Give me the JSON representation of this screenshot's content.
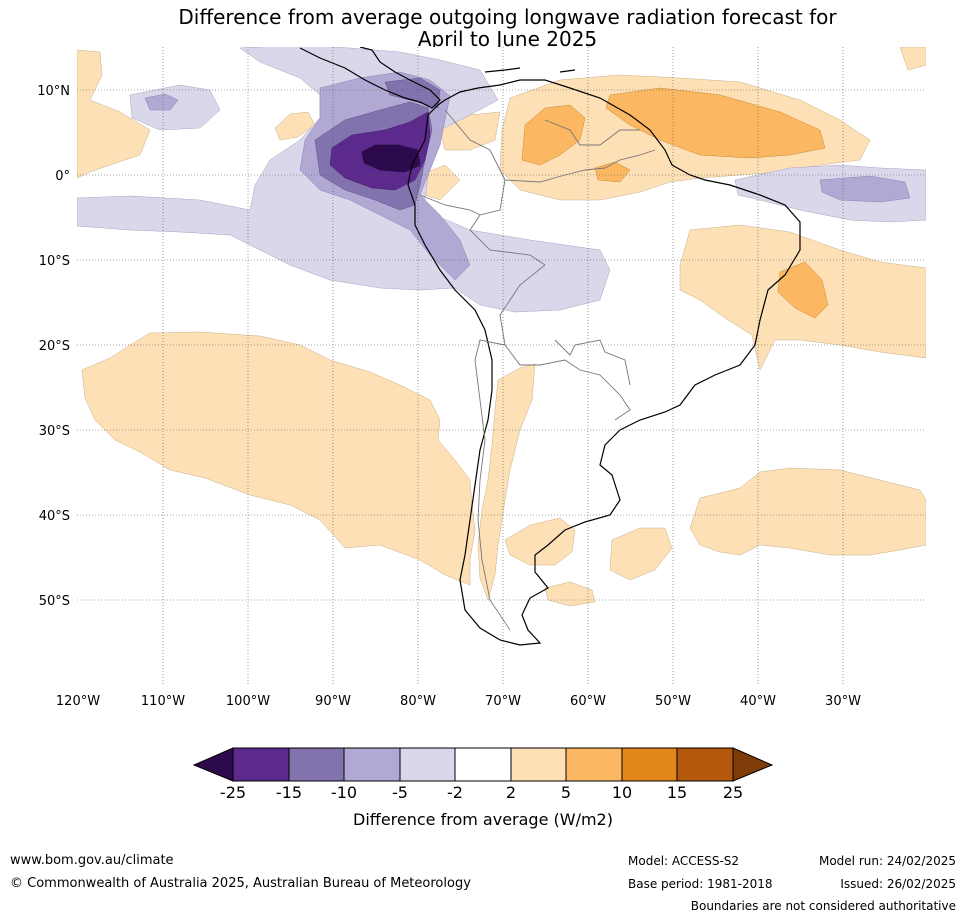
{
  "title": {
    "line1": "Difference from average outgoing longwave radiation forecast for",
    "line2": "April to June 2025"
  },
  "map": {
    "lon_labels": [
      "120°W",
      "110°W",
      "100°W",
      "90°W",
      "80°W",
      "70°W",
      "60°W",
      "50°W",
      "40°W",
      "30°W"
    ],
    "lat_labels": [
      "10°N",
      "0°",
      "10°S",
      "20°S",
      "30°S",
      "40°S",
      "50°S"
    ],
    "colors": {
      "neg25": "#2d0a4e",
      "neg15": "#5c2a8c",
      "neg10": "#8273ae",
      "neg5": "#b1a9d3",
      "neg2": "#d9d8eb",
      "neutral": "#ffffff",
      "pos2": "#fde0b5",
      "pos5": "#fbb762",
      "pos10": "#e0861a",
      "pos15": "#b3580c",
      "pos25": "#7f3b08"
    }
  },
  "colorbar": {
    "ticks": [
      "-25",
      "-15",
      "-10",
      "-5",
      "-2",
      "2",
      "5",
      "10",
      "15",
      "25"
    ],
    "label": "Difference from average (W/m2)"
  },
  "footer": {
    "website": "www.bom.gov.au/climate",
    "copyright": "© Commonwealth of Australia 2025, Australian Bureau of Meteorology",
    "model": "Model: ACCESS-S2",
    "base_period": "Base period: 1981-2018",
    "model_run": "Model run: 24/02/2025",
    "issued": "Issued: 26/02/2025",
    "disclaimer": "Boundaries are not considered authoritative"
  }
}
